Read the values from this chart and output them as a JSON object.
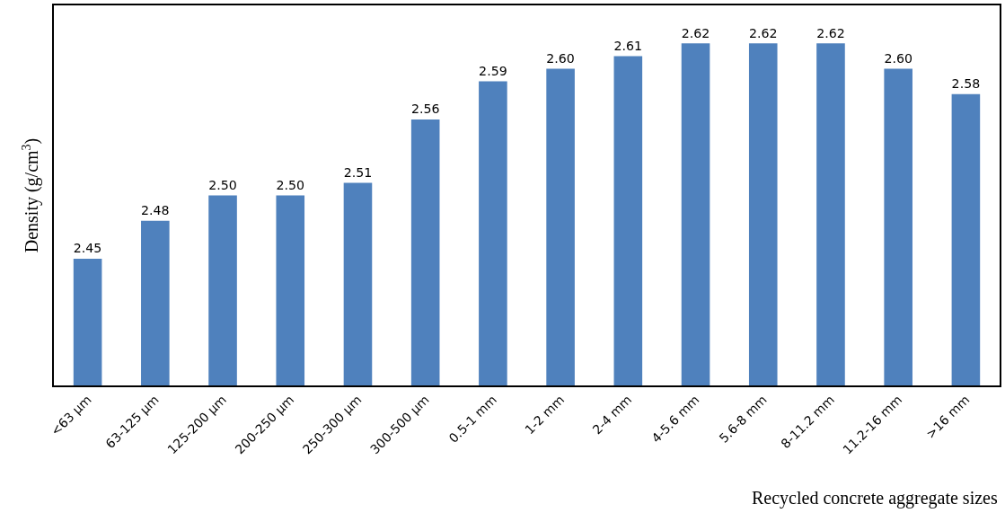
{
  "chart_data": {
    "type": "bar",
    "xlabel": "Recycled concrete aggregate sizes",
    "ylabel": "Density (g/cm$^{3}$)",
    "categories": [
      "<63 µm",
      "63-125 µm",
      "125-200 µm",
      "200-250 µm",
      "250-300 µm",
      "300-500 µm",
      "0.5-1 mm",
      "1-2 mm",
      "2-4 mm",
      "4-5.6 mm",
      "5.6-8 mm",
      "8-11.2 mm",
      "11.2-16 mm",
      ">16 mm"
    ],
    "values": [
      2.45,
      2.48,
      2.5,
      2.5,
      2.51,
      2.56,
      2.59,
      2.6,
      2.61,
      2.62,
      2.62,
      2.62,
      2.6,
      2.58
    ],
    "value_labels": [
      "2.45",
      "2.48",
      "2.50",
      "2.50",
      "2.51",
      "2.56",
      "2.59",
      "2.60",
      "2.61",
      "2.62",
      "2.62",
      "2.62",
      "2.60",
      "2.58"
    ],
    "color": "#4f81bd",
    "ylim": [
      2.35,
      2.65
    ],
    "tick_labels": "x",
    "legend": false
  }
}
